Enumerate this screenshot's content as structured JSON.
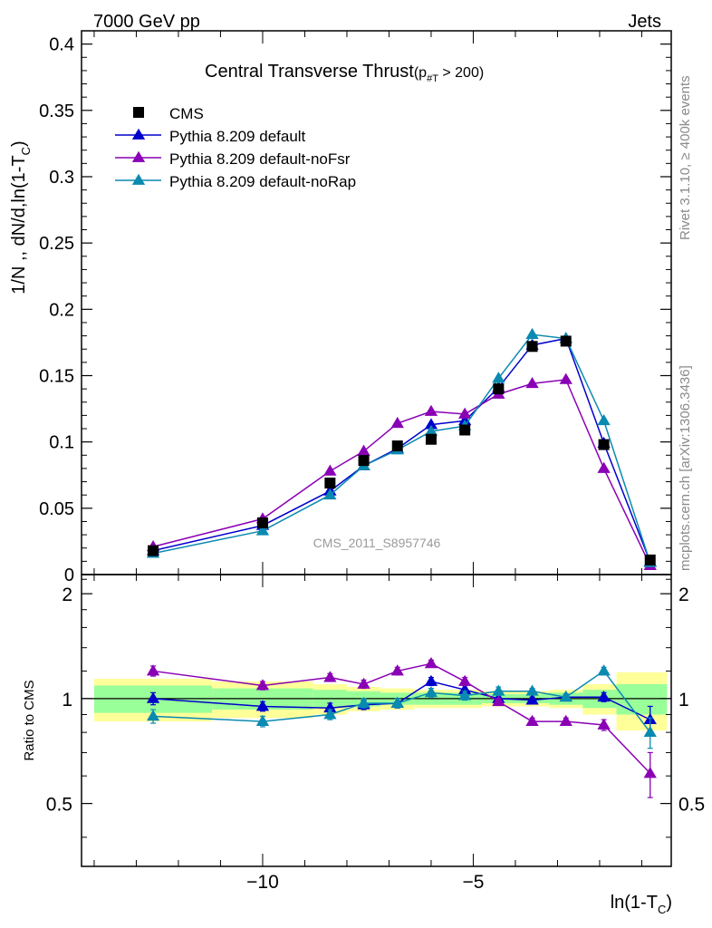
{
  "header": {
    "left": "7000 GeV pp",
    "right": "Jets"
  },
  "chart_data": {
    "type": "line",
    "title": "Central Transverse Thrust",
    "title_sub": {
      "prefix": "(p",
      "subscript": "#T",
      "suffix": "  > 200)"
    },
    "ylabel": {
      "main": "1/N ,, dN/d,ln(1-T",
      "subscript": "C",
      "close": ")"
    },
    "xlabel": {
      "main": "ln(1-T",
      "subscript": "C",
      "close": ")"
    },
    "ratio_ylabel": "Ratio to CMS",
    "watermark": "CMS_2011_S8957746",
    "side_labels": {
      "rivet": "Rivet 3.1.10, ≥ 400k events",
      "mcplots": "mcplots.cern.ch [arXiv:1306.3436]"
    },
    "xlim": [
      -14.3,
      -0.3
    ],
    "ylim": [
      0,
      0.41
    ],
    "ratio_ylim": [
      0.33,
      2.27
    ],
    "x_ticks": [
      -10,
      -5
    ],
    "x_tick_labels": [
      "−10",
      "−5"
    ],
    "y_ticks": [
      0,
      0.05,
      0.1,
      0.15,
      0.2,
      0.25,
      0.3,
      0.35,
      0.4
    ],
    "y_tick_labels": [
      "0",
      "0.05",
      "0.1",
      "0.15",
      "0.2",
      "0.25",
      "0.3",
      "0.35",
      "0.4"
    ],
    "ratio_ticks": [
      0.5,
      1,
      2
    ],
    "ratio_tick_labels": [
      "0.5",
      "1",
      "2"
    ],
    "legend": {
      "position": "top-left"
    },
    "x": [
      -12.6,
      -10.0,
      -8.4,
      -7.6,
      -6.8,
      -6.0,
      -5.2,
      -4.4,
      -3.6,
      -2.8,
      -1.9,
      -0.8
    ],
    "bin_edges": [
      -14.0,
      -11.2,
      -8.8,
      -8.0,
      -7.2,
      -6.4,
      -5.6,
      -4.8,
      -4.0,
      -3.2,
      -2.4,
      -1.6,
      -0.4
    ],
    "data": {
      "name": "CMS",
      "values": [
        0.018,
        0.039,
        0.069,
        0.086,
        0.097,
        0.102,
        0.109,
        0.14,
        0.172,
        0.176,
        0.098,
        0.011
      ],
      "errors": [
        0.001,
        0.001,
        0.002,
        0.002,
        0.002,
        0.002,
        0.002,
        0.003,
        0.003,
        0.003,
        0.002,
        0.001
      ],
      "color": "#000000"
    },
    "band_stat": [
      0.09,
      0.07,
      0.06,
      0.05,
      0.04,
      0.04,
      0.04,
      0.03,
      0.03,
      0.04,
      0.06,
      0.1
    ],
    "band_total": [
      0.14,
      0.12,
      0.1,
      0.08,
      0.07,
      0.06,
      0.06,
      0.05,
      0.05,
      0.06,
      0.1,
      0.19
    ],
    "band_colors": {
      "total": "#ffff99",
      "stat": "#99ff99"
    },
    "series": [
      {
        "name": "Pythia 8.209 default",
        "color": "#0000cc",
        "values": [
          0.018,
          0.037,
          0.063,
          0.082,
          0.095,
          0.113,
          0.116,
          0.141,
          0.173,
          0.178,
          0.099,
          0.0095
        ],
        "errors": [
          0.001,
          0.001,
          0.002,
          0.002,
          0.002,
          0.003,
          0.003,
          0.003,
          0.004,
          0.004,
          0.003,
          0.001
        ],
        "ratio": [
          1.0,
          0.95,
          0.94,
          0.96,
          0.97,
          1.12,
          1.06,
          1.0,
          0.99,
          1.01,
          1.01,
          0.87
        ],
        "ratio_errors": [
          0.04,
          0.03,
          0.03,
          0.03,
          0.03,
          0.03,
          0.03,
          0.03,
          0.02,
          0.02,
          0.03,
          0.08
        ]
      },
      {
        "name": "Pythia 8.209 default-noFsr",
        "color": "#8a00b5",
        "values": [
          0.021,
          0.042,
          0.078,
          0.093,
          0.114,
          0.123,
          0.121,
          0.136,
          0.144,
          0.147,
          0.08,
          0.0068
        ],
        "errors": [
          0.001,
          0.001,
          0.002,
          0.002,
          0.002,
          0.003,
          0.003,
          0.003,
          0.003,
          0.003,
          0.002,
          0.001
        ],
        "ratio": [
          1.2,
          1.09,
          1.15,
          1.1,
          1.2,
          1.26,
          1.12,
          0.98,
          0.86,
          0.86,
          0.84,
          0.61
        ],
        "ratio_errors": [
          0.04,
          0.03,
          0.03,
          0.03,
          0.03,
          0.03,
          0.03,
          0.02,
          0.02,
          0.02,
          0.03,
          0.09
        ]
      },
      {
        "name": "Pythia 8.209 default-noRap",
        "color": "#0a8ab0",
        "values": [
          0.016,
          0.033,
          0.06,
          0.082,
          0.094,
          0.108,
          0.112,
          0.148,
          0.181,
          0.178,
          0.116,
          0.009
        ],
        "errors": [
          0.001,
          0.001,
          0.002,
          0.002,
          0.002,
          0.003,
          0.003,
          0.004,
          0.004,
          0.004,
          0.003,
          0.001
        ],
        "ratio": [
          0.89,
          0.86,
          0.9,
          0.97,
          0.97,
          1.04,
          1.02,
          1.05,
          1.05,
          1.01,
          1.2,
          0.8
        ],
        "ratio_errors": [
          0.04,
          0.03,
          0.03,
          0.03,
          0.03,
          0.03,
          0.03,
          0.03,
          0.02,
          0.02,
          0.03,
          0.08
        ]
      }
    ]
  }
}
